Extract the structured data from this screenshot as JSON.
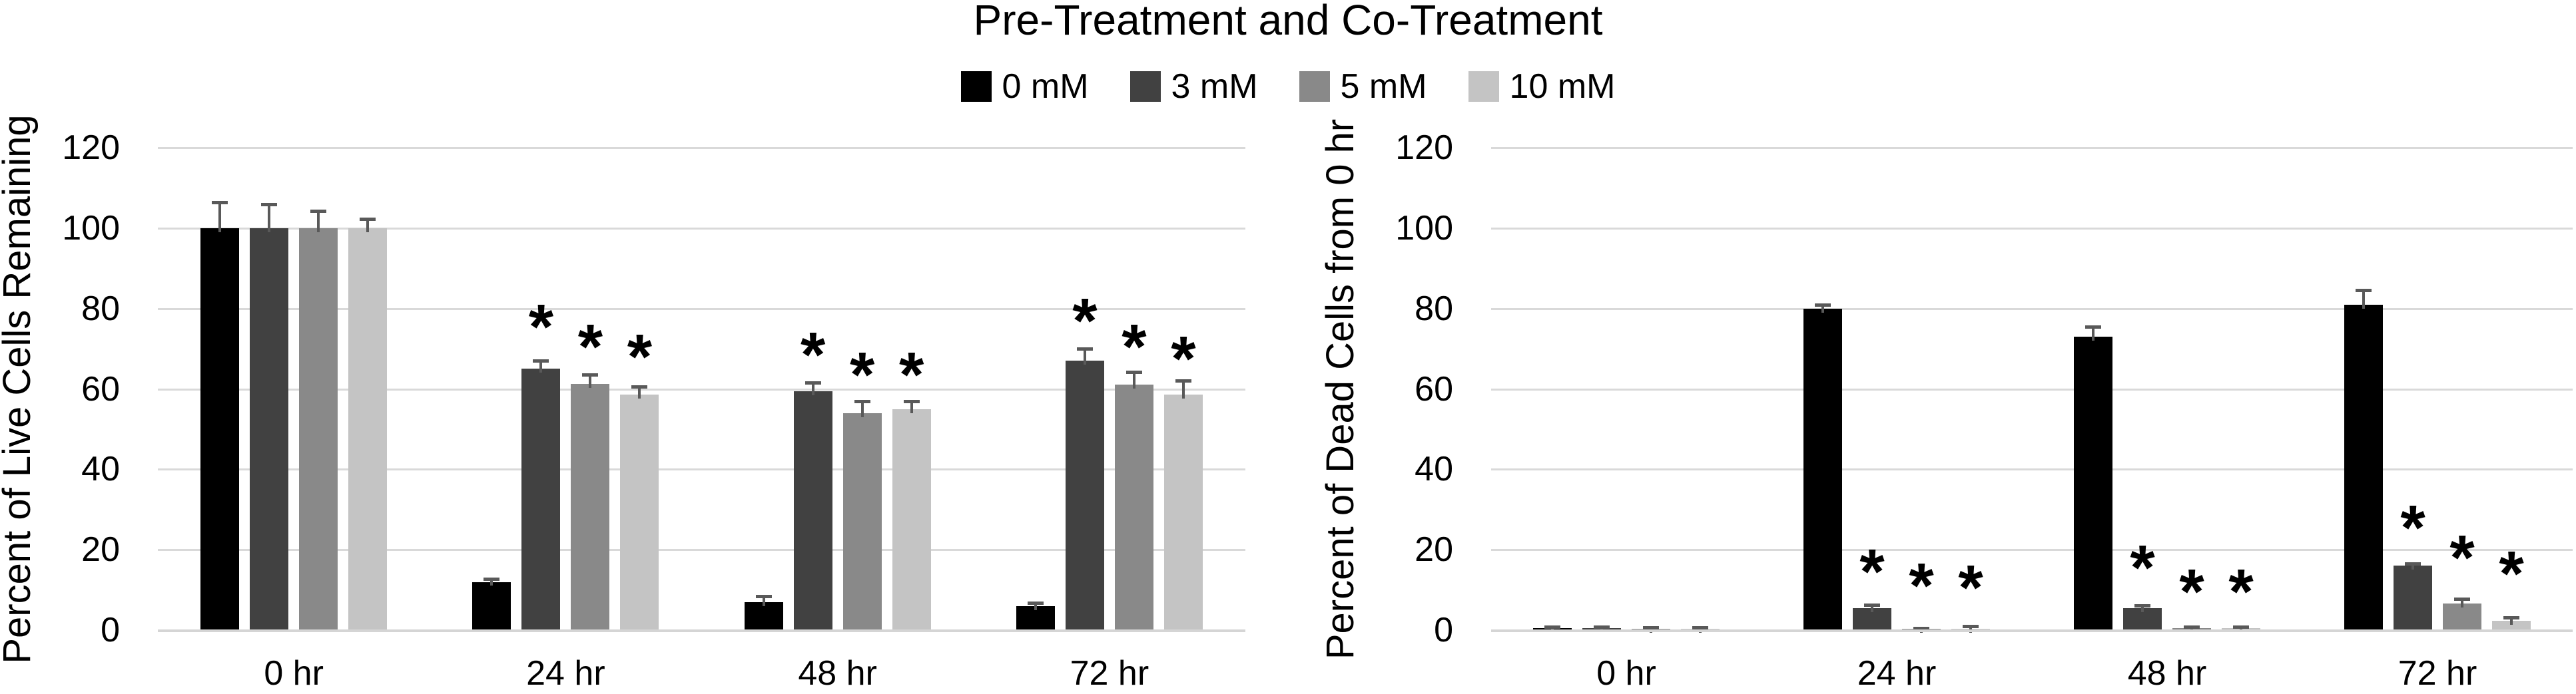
{
  "title": "Pre-Treatment and Co-Treatment",
  "legend": {
    "items": [
      {
        "label": "0 mM",
        "color": "#000000"
      },
      {
        "label": "3 mM",
        "color": "#414141"
      },
      {
        "label": "5 mM",
        "color": "#898989"
      },
      {
        "label": "10 mM",
        "color": "#C4C4C4"
      }
    ]
  },
  "styles": {
    "background": "#FFFFFF",
    "gridline_color": "#D9D9D9",
    "axis_line_color": "#D5D5D5",
    "error_bar_color": "#595959",
    "text_color": "#000000",
    "significance_marker": "*"
  },
  "chart_data": [
    {
      "type": "bar",
      "title": "",
      "ylabel": "Percent of Live Cells Remaining",
      "xlabel": "",
      "categories": [
        "0 hr",
        "24 hr",
        "48 hr",
        "72 hr"
      ],
      "ylim": [
        0,
        120
      ],
      "ytick_step": 20,
      "grid": true,
      "legend_position": "top",
      "series": [
        {
          "name": "0 mM",
          "color": "#000000",
          "values": [
            100,
            12,
            7,
            6
          ],
          "errors": [
            6.4,
            0.8,
            1.4,
            0.8
          ]
        },
        {
          "name": "3 mM",
          "color": "#414141",
          "values": [
            100,
            65,
            59.5,
            67
          ],
          "errors": [
            6.0,
            2.0,
            2.0,
            3.0
          ]
        },
        {
          "name": "5 mM",
          "color": "#898989",
          "values": [
            100,
            61.3,
            54,
            61
          ],
          "errors": [
            4.3,
            2.2,
            3.0,
            3.3
          ]
        },
        {
          "name": "10 mM",
          "color": "#C4C4C4",
          "values": [
            100,
            58.6,
            55,
            58.6
          ],
          "errors": [
            2.3,
            1.9,
            2.0,
            3.5
          ]
        }
      ],
      "annotations": [
        {
          "category": "24 hr",
          "series": "3 mM",
          "y": 79
        },
        {
          "category": "24 hr",
          "series": "5 mM",
          "y": 74
        },
        {
          "category": "24 hr",
          "series": "10 mM",
          "y": 71.5
        },
        {
          "category": "48 hr",
          "series": "3 mM",
          "y": 72
        },
        {
          "category": "48 hr",
          "series": "5 mM",
          "y": 67
        },
        {
          "category": "48 hr",
          "series": "10 mM",
          "y": 67
        },
        {
          "category": "72 hr",
          "series": "3 mM",
          "y": 80.5
        },
        {
          "category": "72 hr",
          "series": "5 mM",
          "y": 74
        },
        {
          "category": "72 hr",
          "series": "10 mM",
          "y": 71
        }
      ]
    },
    {
      "type": "bar",
      "title": "",
      "ylabel": "Percent of Dead Cells from 0 hr",
      "xlabel": "",
      "categories": [
        "0 hr",
        "24 hr",
        "48 hr",
        "72 hr"
      ],
      "ylim": [
        0,
        120
      ],
      "ytick_step": 20,
      "grid": true,
      "legend_position": "top",
      "series": [
        {
          "name": "0 mM",
          "color": "#000000",
          "values": [
            0.5,
            80,
            73,
            81
          ],
          "errors": [
            0.3,
            1.0,
            2.5,
            3.5
          ]
        },
        {
          "name": "3 mM",
          "color": "#414141",
          "values": [
            0.5,
            5.4,
            5.4,
            16
          ],
          "errors": [
            0.3,
            0.9,
            0.7,
            0.5
          ]
        },
        {
          "name": "5 mM",
          "color": "#898989",
          "values": [
            0.4,
            0.3,
            0.5,
            6.6
          ],
          "errors": [
            0.3,
            0.2,
            0.3,
            1.2
          ]
        },
        {
          "name": "10 mM",
          "color": "#C4C4C4",
          "values": [
            0.4,
            0.3,
            0.5,
            2.3
          ],
          "errors": [
            0.3,
            0.7,
            0.3,
            0.8
          ]
        }
      ],
      "annotations": [
        {
          "category": "24 hr",
          "series": "3 mM",
          "y": 18
        },
        {
          "category": "24 hr",
          "series": "5 mM",
          "y": 14.5
        },
        {
          "category": "24 hr",
          "series": "10 mM",
          "y": 14
        },
        {
          "category": "48 hr",
          "series": "3 mM",
          "y": 19
        },
        {
          "category": "48 hr",
          "series": "5 mM",
          "y": 13
        },
        {
          "category": "48 hr",
          "series": "10 mM",
          "y": 13
        },
        {
          "category": "72 hr",
          "series": "3 mM",
          "y": 29
        },
        {
          "category": "72 hr",
          "series": "5 mM",
          "y": 21.5
        },
        {
          "category": "72 hr",
          "series": "10 mM",
          "y": 17.5
        }
      ]
    }
  ]
}
